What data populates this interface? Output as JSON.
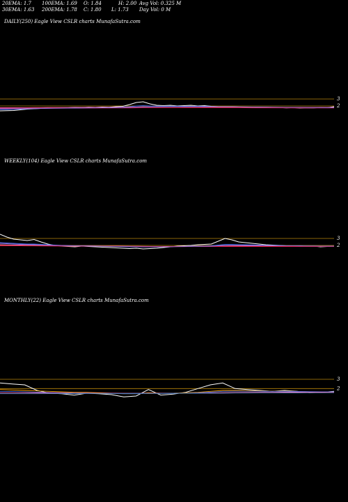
{
  "header": {
    "ema20": "20EMA: 1.7",
    "ema100": "100EMA: 1.69",
    "open": "O: 1.84",
    "high": "H: 2.00",
    "avg_vol": "Avg Vol: 0.325 M",
    "ema30": "30EMA: 1.63",
    "ema200": "200EMA: 1.78",
    "close": "C: 1.80",
    "low": "L: 1.73",
    "day_vol": "Day Vol: 0  M"
  },
  "chart_data": [
    {
      "type": "line",
      "title": "DAILY(250) Eagle   View  CSLR charts MunafaSutra.com",
      "y_ticks": [
        {
          "label": "3",
          "value": 3
        },
        {
          "label": "2",
          "value": 2
        }
      ],
      "ylim": [
        0.6,
        3.6
      ],
      "reference_lines": [
        {
          "value": 3.0,
          "color": "#b8860b"
        },
        {
          "value": 2.0,
          "color": "#b8860b"
        }
      ],
      "series": [
        {
          "color": "#ffffff",
          "values": [
            1.3,
            1.32,
            1.35,
            1.45,
            1.55,
            1.6,
            1.65,
            1.7,
            1.72,
            1.7,
            1.75,
            1.8,
            1.78,
            1.82,
            1.8,
            1.85,
            1.83,
            1.9,
            1.95,
            2.2,
            2.5,
            2.6,
            2.3,
            2.1,
            2.05,
            2.1,
            2.0,
            2.05,
            2.1,
            2.0,
            2.05,
            1.95,
            1.9,
            1.85,
            1.88,
            1.85,
            1.8,
            1.82,
            1.78,
            1.8,
            1.75,
            1.78,
            1.72,
            1.76,
            1.7,
            1.74,
            1.72,
            1.78,
            1.75,
            1.9
          ]
        },
        {
          "color": "#4169e1",
          "values": [
            1.5,
            1.5,
            1.52,
            1.55,
            1.6,
            1.62,
            1.65,
            1.68,
            1.7,
            1.7,
            1.72,
            1.74,
            1.75,
            1.77,
            1.78,
            1.8,
            1.8,
            1.82,
            1.84,
            1.9,
            2.0,
            2.05,
            2.0,
            1.98,
            1.97,
            1.98,
            1.96,
            1.96,
            1.97,
            1.95,
            1.95,
            1.92,
            1.9,
            1.88,
            1.87,
            1.86,
            1.84,
            1.83,
            1.82,
            1.82,
            1.8,
            1.8,
            1.78,
            1.78,
            1.76,
            1.76,
            1.75,
            1.76,
            1.76,
            1.8
          ]
        },
        {
          "color": "#ff69b4",
          "values": [
            1.75,
            1.75,
            1.75,
            1.76,
            1.76,
            1.77,
            1.77,
            1.78,
            1.78,
            1.78,
            1.78,
            1.79,
            1.79,
            1.8,
            1.8,
            1.8,
            1.8,
            1.81,
            1.81,
            1.83,
            1.86,
            1.88,
            1.88,
            1.88,
            1.88,
            1.88,
            1.88,
            1.87,
            1.87,
            1.87,
            1.86,
            1.86,
            1.85,
            1.85,
            1.84,
            1.84,
            1.83,
            1.83,
            1.82,
            1.82,
            1.81,
            1.81,
            1.8,
            1.8,
            1.8,
            1.79,
            1.79,
            1.79,
            1.79,
            1.79
          ]
        },
        {
          "color": "#dc143c",
          "values": [
            1.68,
            1.68,
            1.68,
            1.68,
            1.69,
            1.69,
            1.69,
            1.69,
            1.7,
            1.7,
            1.7,
            1.7,
            1.7,
            1.71,
            1.71,
            1.71,
            1.71,
            1.72,
            1.72,
            1.72,
            1.73,
            1.74,
            1.74,
            1.74,
            1.74,
            1.74,
            1.74,
            1.74,
            1.74,
            1.74,
            1.74,
            1.74,
            1.74,
            1.74,
            1.74,
            1.74,
            1.74,
            1.73,
            1.73,
            1.73,
            1.73,
            1.73,
            1.73,
            1.72,
            1.72,
            1.72,
            1.72,
            1.72,
            1.72,
            1.72
          ]
        },
        {
          "color": "#9370db",
          "values": [
            1.6,
            1.6,
            1.61,
            1.62,
            1.63,
            1.64,
            1.65,
            1.66,
            1.67,
            1.68,
            1.69,
            1.7,
            1.71,
            1.72,
            1.73,
            1.74,
            1.75,
            1.76,
            1.77,
            1.79,
            1.82,
            1.85,
            1.86,
            1.87,
            1.88,
            1.89,
            1.9,
            1.9,
            1.91,
            1.91,
            1.91,
            1.91,
            1.9,
            1.9,
            1.89,
            1.88,
            1.87,
            1.86,
            1.85,
            1.84,
            1.83,
            1.82,
            1.81,
            1.8,
            1.79,
            1.78,
            1.77,
            1.77,
            1.76,
            1.77
          ]
        }
      ]
    },
    {
      "type": "line",
      "title": "WEEKLY(104) Eagle   View  CSLR charts MunafaSutra.com",
      "y_ticks": [
        {
          "label": "3",
          "value": 3
        },
        {
          "label": "2",
          "value": 2
        }
      ],
      "ylim": [
        0.6,
        3.6
      ],
      "reference_lines": [
        {
          "value": 3.0,
          "color": "#b8860b"
        },
        {
          "value": 2.0,
          "color": "#b8860b"
        }
      ],
      "series": [
        {
          "color": "#ffffff",
          "values": [
            3.6,
            3.2,
            2.9,
            2.8,
            2.7,
            2.85,
            2.5,
            2.2,
            2.0,
            1.9,
            1.85,
            1.8,
            1.9,
            1.85,
            1.8,
            1.75,
            1.7,
            1.65,
            1.6,
            1.55,
            1.6,
            1.5,
            1.55,
            1.6,
            1.7,
            1.8,
            1.9,
            1.95,
            2.0,
            2.1,
            2.15,
            2.2,
            2.6,
            3.0,
            2.8,
            2.5,
            2.4,
            2.3,
            2.2,
            2.1,
            2.05,
            2.0,
            1.95,
            1.9,
            1.95,
            1.85,
            1.9,
            1.8,
            1.85,
            1.9
          ]
        },
        {
          "color": "#4169e1",
          "values": [
            2.4,
            2.35,
            2.3,
            2.25,
            2.2,
            2.2,
            2.15,
            2.1,
            2.05,
            2.0,
            1.98,
            1.95,
            1.95,
            1.93,
            1.9,
            1.88,
            1.86,
            1.84,
            1.82,
            1.8,
            1.8,
            1.78,
            1.78,
            1.78,
            1.8,
            1.82,
            1.84,
            1.86,
            1.88,
            1.9,
            1.93,
            1.96,
            2.05,
            2.15,
            2.15,
            2.12,
            2.1,
            2.08,
            2.05,
            2.02,
            2.0,
            1.98,
            1.96,
            1.94,
            1.94,
            1.92,
            1.92,
            1.9,
            1.9,
            1.9
          ]
        },
        {
          "color": "#ff69b4",
          "values": [
            2.1,
            2.08,
            2.06,
            2.05,
            2.04,
            2.03,
            2.02,
            2.0,
            1.99,
            1.98,
            1.97,
            1.96,
            1.95,
            1.94,
            1.93,
            1.92,
            1.91,
            1.9,
            1.89,
            1.88,
            1.88,
            1.87,
            1.86,
            1.86,
            1.86,
            1.86,
            1.86,
            1.86,
            1.87,
            1.87,
            1.88,
            1.89,
            1.91,
            1.93,
            1.94,
            1.94,
            1.94,
            1.94,
            1.94,
            1.93,
            1.93,
            1.92,
            1.92,
            1.91,
            1.91,
            1.9,
            1.9,
            1.9,
            1.89,
            1.89
          ]
        },
        {
          "color": "#dc143c",
          "values": [
            1.95,
            1.95,
            1.94,
            1.94,
            1.93,
            1.93,
            1.92,
            1.92,
            1.91,
            1.91,
            1.9,
            1.9,
            1.89,
            1.89,
            1.88,
            1.88,
            1.87,
            1.87,
            1.86,
            1.86,
            1.85,
            1.85,
            1.85,
            1.84,
            1.84,
            1.84,
            1.84,
            1.84,
            1.84,
            1.84,
            1.84,
            1.84,
            1.85,
            1.85,
            1.85,
            1.85,
            1.85,
            1.85,
            1.85,
            1.85,
            1.85,
            1.85,
            1.85,
            1.85,
            1.85,
            1.85,
            1.85,
            1.85,
            1.85,
            1.85
          ]
        },
        {
          "color": "#9370db",
          "values": [
            2.3,
            2.25,
            2.2,
            2.16,
            2.12,
            2.1,
            2.07,
            2.04,
            2.01,
            1.98,
            1.96,
            1.94,
            1.93,
            1.92,
            1.9,
            1.89,
            1.87,
            1.86,
            1.84,
            1.83,
            1.82,
            1.81,
            1.8,
            1.8,
            1.8,
            1.81,
            1.82,
            1.83,
            1.84,
            1.86,
            1.88,
            1.9,
            1.95,
            2.0,
            2.02,
            2.02,
            2.01,
            2.0,
            1.99,
            1.98,
            1.97,
            1.96,
            1.95,
            1.94,
            1.93,
            1.92,
            1.92,
            1.91,
            1.9,
            1.9
          ]
        }
      ]
    },
    {
      "type": "line",
      "title": "MONTHLY(22) Eagle   View  CSLR charts MunafaSutra.com",
      "y_ticks": [
        {
          "label": "3",
          "value": 3
        },
        {
          "label": "2",
          "value": 2
        }
      ],
      "ylim": [
        0.6,
        3.6
      ],
      "reference_lines": [
        {
          "value": 3.0,
          "color": "#b8860b"
        },
        {
          "value": 2.0,
          "color": "#b8860b"
        }
      ],
      "series": [
        {
          "color": "#ffffff",
          "values": [
            2.6,
            2.5,
            2.4,
            1.8,
            1.5,
            1.45,
            1.3,
            1.5,
            1.45,
            1.35,
            1.1,
            1.2,
            1.9,
            1.3,
            1.4,
            1.6,
            2.0,
            2.4,
            2.6,
            2.0,
            1.9,
            1.8,
            1.7,
            1.8,
            1.7,
            1.55,
            1.6,
            1.7
          ]
        },
        {
          "color": "#ffa500",
          "values": [
            1.9,
            1.85,
            1.8,
            1.75,
            1.7,
            1.65,
            1.6,
            1.6,
            1.55,
            1.5,
            1.45,
            1.45,
            1.55,
            1.5,
            1.5,
            1.55,
            1.6,
            1.7,
            1.8,
            1.8,
            1.78,
            1.75,
            1.72,
            1.72,
            1.7,
            1.66,
            1.65,
            1.66
          ]
        },
        {
          "color": "#4169e1",
          "values": [
            1.7,
            1.68,
            1.66,
            1.62,
            1.58,
            1.55,
            1.52,
            1.52,
            1.5,
            1.48,
            1.45,
            1.45,
            1.5,
            1.48,
            1.48,
            1.5,
            1.55,
            1.62,
            1.7,
            1.72,
            1.72,
            1.71,
            1.7,
            1.7,
            1.69,
            1.67,
            1.66,
            1.66
          ]
        },
        {
          "color": "#ff69b4",
          "values": [
            1.55,
            1.55,
            1.55,
            1.54,
            1.53,
            1.52,
            1.51,
            1.51,
            1.5,
            1.5,
            1.49,
            1.49,
            1.5,
            1.5,
            1.5,
            1.51,
            1.52,
            1.54,
            1.56,
            1.58,
            1.59,
            1.6,
            1.6,
            1.61,
            1.61,
            1.61,
            1.61,
            1.62
          ]
        },
        {
          "color": "#4682b4",
          "values": [
            1.45,
            1.45,
            1.45,
            1.45,
            1.46,
            1.46,
            1.46,
            1.47,
            1.47,
            1.47,
            1.47,
            1.48,
            1.48,
            1.48,
            1.49,
            1.49,
            1.5,
            1.5,
            1.51,
            1.52,
            1.52,
            1.53,
            1.53,
            1.54,
            1.54,
            1.55,
            1.55,
            1.56
          ]
        }
      ]
    }
  ]
}
